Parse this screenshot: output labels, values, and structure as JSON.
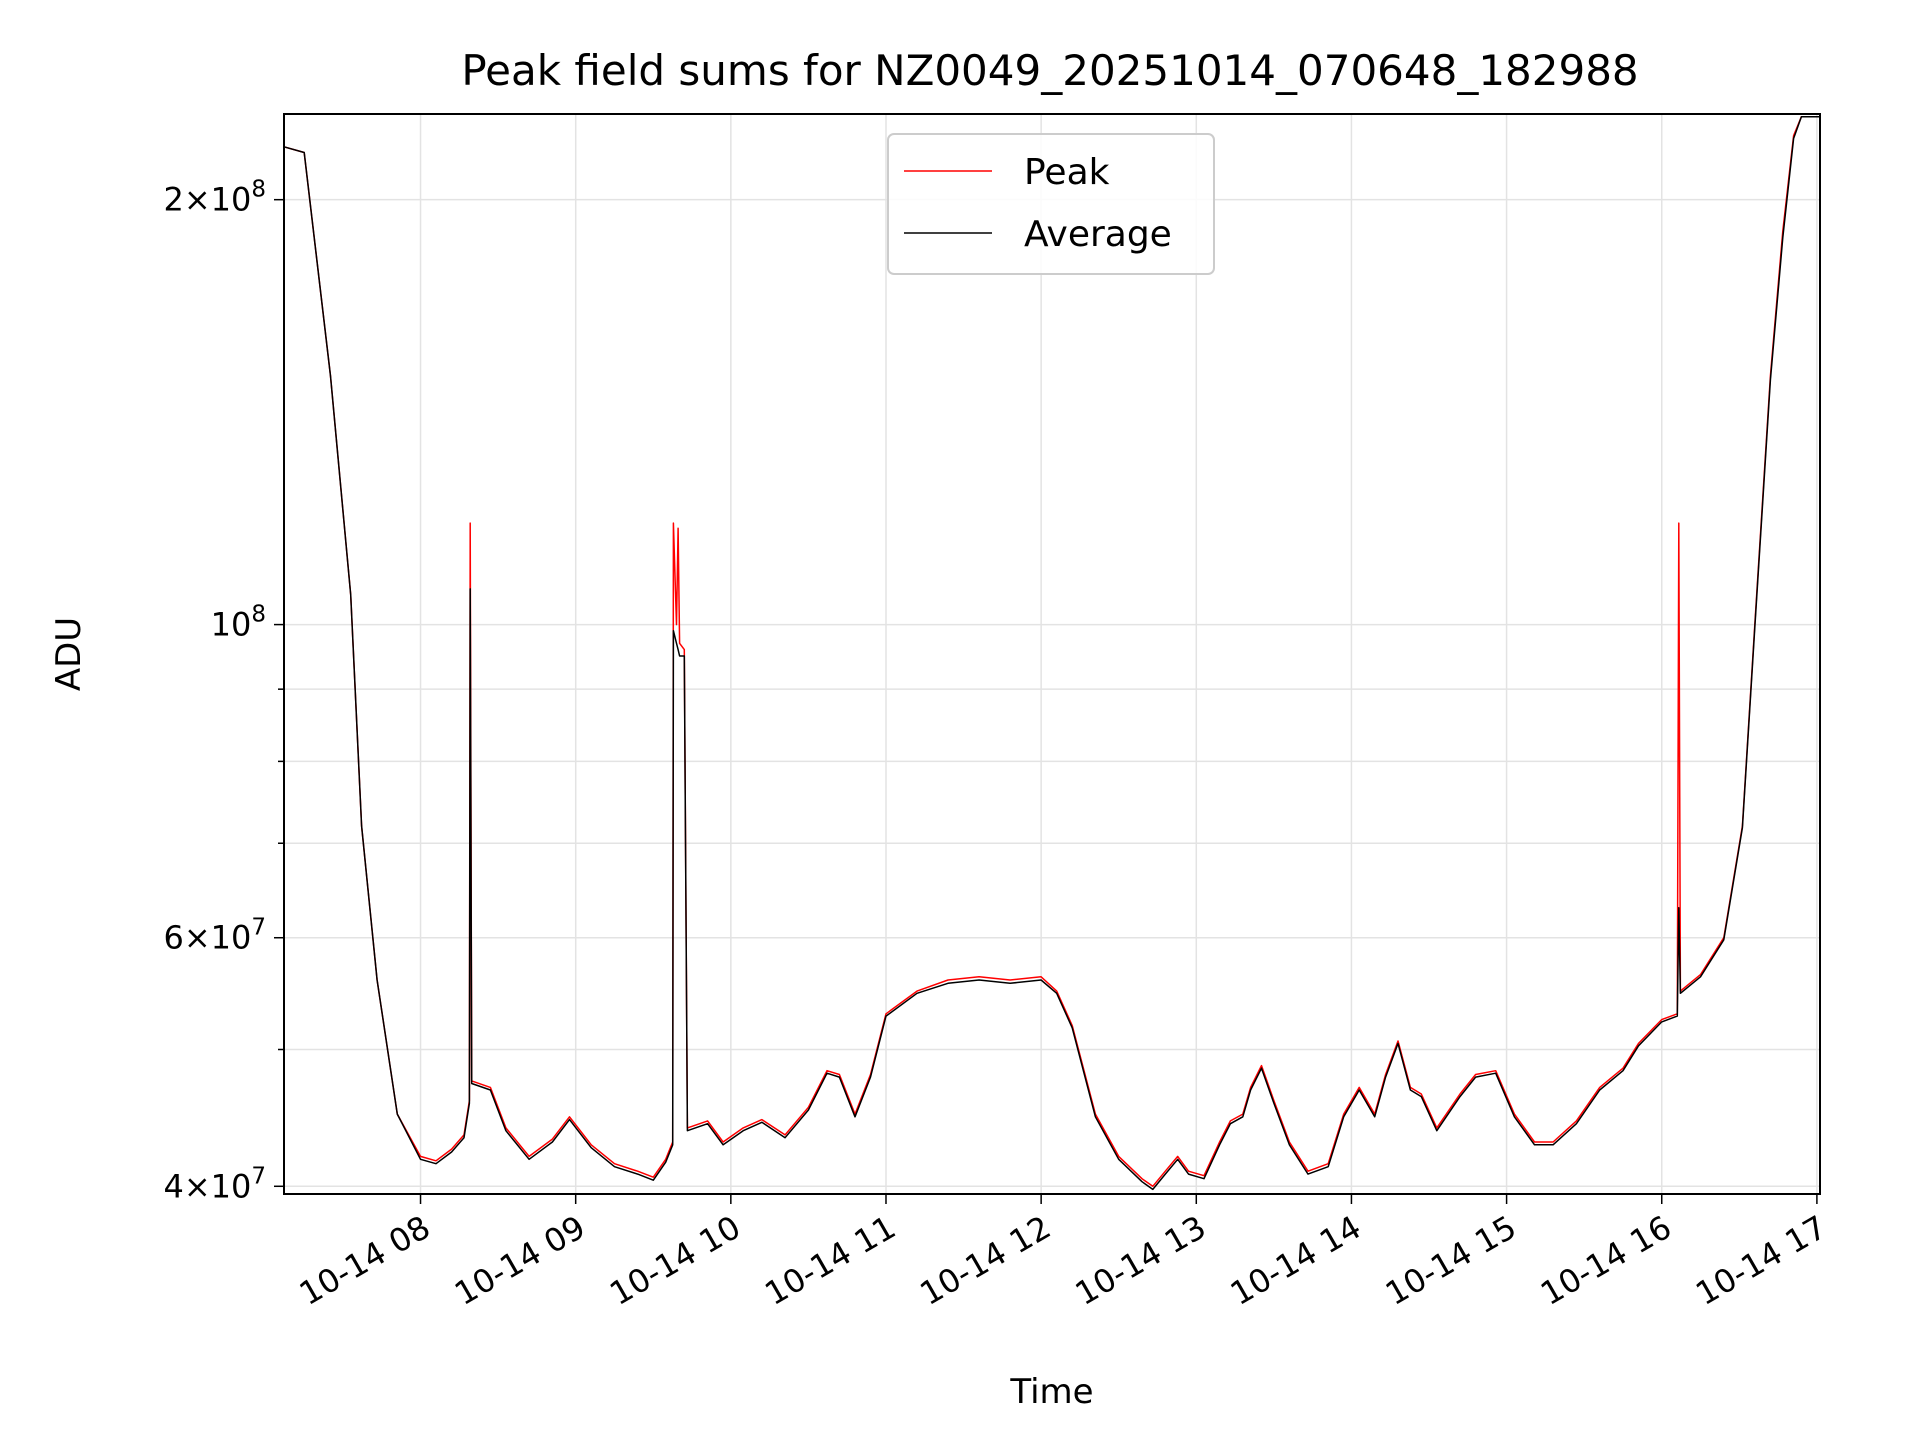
{
  "chart_data": {
    "type": "line",
    "title": "Peak field sums for NZ0049_20251014_070648_182988",
    "xlabel": "Time",
    "ylabel": "ADU",
    "yscale": "log",
    "ylim": [
      39500000,
      230000000
    ],
    "xlim_hours": [
      7.12,
      17.02
    ],
    "grid": true,
    "legend_position": "top-center",
    "x_ticks": [
      {
        "hour": 8,
        "label": "10-14 08"
      },
      {
        "hour": 9,
        "label": "10-14 09"
      },
      {
        "hour": 10,
        "label": "10-14 10"
      },
      {
        "hour": 11,
        "label": "10-14 11"
      },
      {
        "hour": 12,
        "label": "10-14 12"
      },
      {
        "hour": 13,
        "label": "10-14 13"
      },
      {
        "hour": 14,
        "label": "10-14 14"
      },
      {
        "hour": 15,
        "label": "10-14 15"
      },
      {
        "hour": 16,
        "label": "10-14 16"
      },
      {
        "hour": 17,
        "label": "10-14 17"
      }
    ],
    "y_major_ticks": [
      {
        "value": 40000000,
        "mantissa": "4",
        "exp": "7"
      },
      {
        "value": 60000000,
        "mantissa": "6",
        "exp": "7"
      },
      {
        "value": 100000000,
        "mantissa": "",
        "exp": "8"
      },
      {
        "value": 200000000,
        "mantissa": "2",
        "exp": "8"
      }
    ],
    "y_minor_ticks": [
      50000000,
      70000000,
      80000000,
      90000000
    ],
    "series": [
      {
        "name": "Peak",
        "color": "#ff0000",
        "points": [
          [
            7.12,
            218000000
          ],
          [
            7.25,
            216000000
          ],
          [
            7.42,
            150000000
          ],
          [
            7.55,
            105000000
          ],
          [
            7.62,
            72000000
          ],
          [
            7.72,
            56000000
          ],
          [
            7.85,
            45000000
          ],
          [
            8.0,
            42000000
          ],
          [
            8.1,
            41700000
          ],
          [
            8.2,
            42500000
          ],
          [
            8.28,
            43500000
          ],
          [
            8.315,
            46000000
          ],
          [
            8.32,
            118000000
          ],
          [
            8.33,
            47500000
          ],
          [
            8.45,
            47000000
          ],
          [
            8.55,
            44000000
          ],
          [
            8.7,
            42000000
          ],
          [
            8.85,
            43200000
          ],
          [
            8.96,
            44800000
          ],
          [
            9.1,
            42800000
          ],
          [
            9.25,
            41500000
          ],
          [
            9.4,
            41000000
          ],
          [
            9.5,
            40600000
          ],
          [
            9.58,
            41800000
          ],
          [
            9.625,
            43000000
          ],
          [
            9.63,
            118000000
          ],
          [
            9.65,
            100000000
          ],
          [
            9.66,
            117000000
          ],
          [
            9.67,
            97000000
          ],
          [
            9.7,
            96000000
          ],
          [
            9.72,
            44000000
          ],
          [
            9.85,
            44500000
          ],
          [
            9.95,
            43000000
          ],
          [
            10.08,
            44000000
          ],
          [
            10.2,
            44600000
          ],
          [
            10.35,
            43500000
          ],
          [
            10.5,
            45500000
          ],
          [
            10.62,
            48300000
          ],
          [
            10.7,
            48000000
          ],
          [
            10.8,
            45000000
          ],
          [
            10.9,
            48000000
          ],
          [
            11.0,
            53000000
          ],
          [
            11.2,
            55000000
          ],
          [
            11.4,
            56000000
          ],
          [
            11.6,
            56300000
          ],
          [
            11.8,
            56000000
          ],
          [
            12.0,
            56300000
          ],
          [
            12.1,
            55000000
          ],
          [
            12.2,
            52000000
          ],
          [
            12.35,
            45000000
          ],
          [
            12.5,
            42000000
          ],
          [
            12.65,
            40500000
          ],
          [
            12.72,
            40000000
          ],
          [
            12.8,
            41000000
          ],
          [
            12.88,
            42000000
          ],
          [
            12.95,
            41000000
          ],
          [
            13.05,
            40700000
          ],
          [
            13.15,
            43000000
          ],
          [
            13.22,
            44500000
          ],
          [
            13.3,
            45000000
          ],
          [
            13.35,
            47000000
          ],
          [
            13.42,
            48700000
          ],
          [
            13.5,
            46000000
          ],
          [
            13.6,
            43000000
          ],
          [
            13.72,
            41000000
          ],
          [
            13.85,
            41500000
          ],
          [
            13.95,
            45000000
          ],
          [
            14.05,
            47000000
          ],
          [
            14.15,
            45000000
          ],
          [
            14.22,
            48000000
          ],
          [
            14.3,
            50700000
          ],
          [
            14.38,
            47000000
          ],
          [
            14.45,
            46500000
          ],
          [
            14.55,
            44000000
          ],
          [
            14.7,
            46500000
          ],
          [
            14.8,
            48000000
          ],
          [
            14.93,
            48300000
          ],
          [
            15.05,
            45000000
          ],
          [
            15.18,
            43000000
          ],
          [
            15.3,
            43000000
          ],
          [
            15.45,
            44500000
          ],
          [
            15.6,
            47000000
          ],
          [
            15.75,
            48500000
          ],
          [
            15.85,
            50500000
          ],
          [
            16.0,
            52500000
          ],
          [
            16.1,
            53000000
          ],
          [
            16.11,
            118000000
          ],
          [
            16.12,
            55000000
          ],
          [
            16.25,
            56500000
          ],
          [
            16.4,
            60000000
          ],
          [
            16.52,
            72000000
          ],
          [
            16.6,
            100000000
          ],
          [
            16.7,
            150000000
          ],
          [
            16.78,
            190000000
          ],
          [
            16.85,
            222000000
          ],
          [
            16.9,
            229000000
          ],
          [
            17.02,
            229000000
          ]
        ]
      },
      {
        "name": "Average",
        "color": "#000000",
        "points": [
          [
            7.12,
            218000000
          ],
          [
            7.25,
            216000000
          ],
          [
            7.42,
            150000000
          ],
          [
            7.55,
            105000000
          ],
          [
            7.62,
            72000000
          ],
          [
            7.72,
            56000000
          ],
          [
            7.85,
            45000000
          ],
          [
            8.0,
            41800000
          ],
          [
            8.1,
            41500000
          ],
          [
            8.2,
            42300000
          ],
          [
            8.28,
            43300000
          ],
          [
            8.315,
            45800000
          ],
          [
            8.32,
            106000000
          ],
          [
            8.33,
            47300000
          ],
          [
            8.45,
            46800000
          ],
          [
            8.55,
            43800000
          ],
          [
            8.7,
            41800000
          ],
          [
            8.85,
            43000000
          ],
          [
            8.96,
            44600000
          ],
          [
            9.1,
            42600000
          ],
          [
            9.25,
            41300000
          ],
          [
            9.4,
            40800000
          ],
          [
            9.5,
            40400000
          ],
          [
            9.58,
            41600000
          ],
          [
            9.625,
            42800000
          ],
          [
            9.63,
            99000000
          ],
          [
            9.65,
            97000000
          ],
          [
            9.66,
            96000000
          ],
          [
            9.67,
            95000000
          ],
          [
            9.7,
            95000000
          ],
          [
            9.72,
            43800000
          ],
          [
            9.85,
            44300000
          ],
          [
            9.95,
            42800000
          ],
          [
            10.08,
            43800000
          ],
          [
            10.2,
            44400000
          ],
          [
            10.35,
            43300000
          ],
          [
            10.5,
            45300000
          ],
          [
            10.62,
            48100000
          ],
          [
            10.7,
            47800000
          ],
          [
            10.8,
            44800000
          ],
          [
            10.9,
            47800000
          ],
          [
            11.0,
            52800000
          ],
          [
            11.2,
            54800000
          ],
          [
            11.4,
            55700000
          ],
          [
            11.6,
            56000000
          ],
          [
            11.8,
            55700000
          ],
          [
            12.0,
            56000000
          ],
          [
            12.1,
            54800000
          ],
          [
            12.2,
            51800000
          ],
          [
            12.35,
            44800000
          ],
          [
            12.5,
            41800000
          ],
          [
            12.65,
            40300000
          ],
          [
            12.72,
            39800000
          ],
          [
            12.8,
            40800000
          ],
          [
            12.88,
            41800000
          ],
          [
            12.95,
            40800000
          ],
          [
            13.05,
            40500000
          ],
          [
            13.15,
            42800000
          ],
          [
            13.22,
            44300000
          ],
          [
            13.3,
            44800000
          ],
          [
            13.35,
            46800000
          ],
          [
            13.42,
            48500000
          ],
          [
            13.5,
            45800000
          ],
          [
            13.6,
            42800000
          ],
          [
            13.72,
            40800000
          ],
          [
            13.85,
            41300000
          ],
          [
            13.95,
            44800000
          ],
          [
            14.05,
            46800000
          ],
          [
            14.15,
            44800000
          ],
          [
            14.22,
            47800000
          ],
          [
            14.3,
            50500000
          ],
          [
            14.38,
            46800000
          ],
          [
            14.45,
            46300000
          ],
          [
            14.55,
            43800000
          ],
          [
            14.7,
            46300000
          ],
          [
            14.8,
            47800000
          ],
          [
            14.93,
            48100000
          ],
          [
            15.05,
            44800000
          ],
          [
            15.18,
            42800000
          ],
          [
            15.3,
            42800000
          ],
          [
            15.45,
            44300000
          ],
          [
            15.6,
            46800000
          ],
          [
            15.75,
            48300000
          ],
          [
            15.85,
            50300000
          ],
          [
            16.0,
            52300000
          ],
          [
            16.1,
            52800000
          ],
          [
            16.11,
            63000000
          ],
          [
            16.12,
            54800000
          ],
          [
            16.25,
            56300000
          ],
          [
            16.4,
            59800000
          ],
          [
            16.52,
            71800000
          ],
          [
            16.6,
            99500000
          ],
          [
            16.7,
            149000000
          ],
          [
            16.78,
            188000000
          ],
          [
            16.85,
            221000000
          ],
          [
            16.9,
            229000000
          ],
          [
            17.02,
            229000000
          ]
        ]
      }
    ]
  }
}
